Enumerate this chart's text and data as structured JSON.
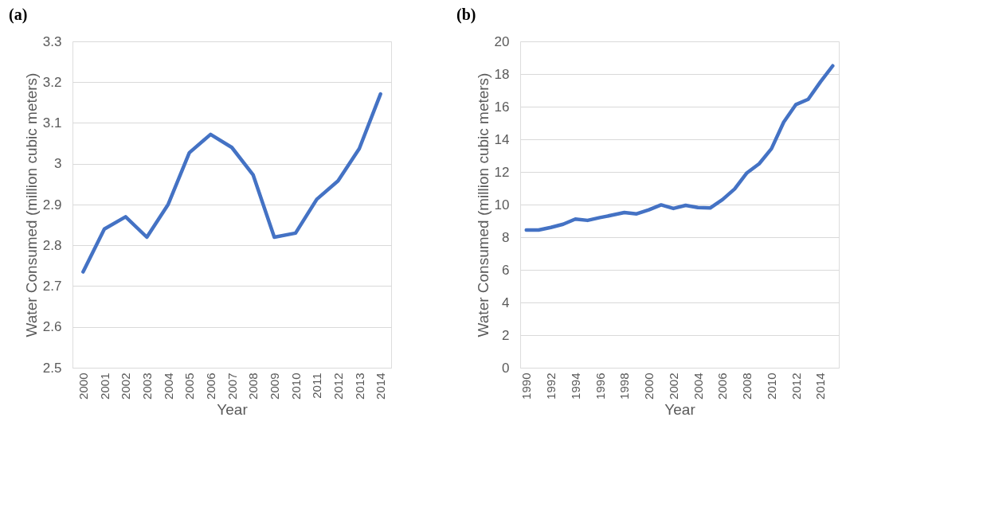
{
  "chart_data": [
    {
      "type": "line",
      "title": "(a)",
      "xlabel": "Year",
      "ylabel": "Water Consumed (million cubic meters)",
      "categories": [
        "2000",
        "2001",
        "2002",
        "2003",
        "2004",
        "2005",
        "2006",
        "2007",
        "2008",
        "2009",
        "2010",
        "2011",
        "2012",
        "2013",
        "2014"
      ],
      "series": [
        {
          "color": "#4472c4",
          "values": [
            2.735,
            2.84,
            2.87,
            2.82,
            2.9,
            3.027,
            3.072,
            3.04,
            2.973,
            2.82,
            2.83,
            2.913,
            2.958,
            3.037,
            3.171
          ]
        }
      ],
      "ylim": [
        2.5,
        3.3
      ],
      "yticks": [
        2.5,
        2.6,
        2.7,
        2.8,
        2.9,
        3,
        3.1,
        3.2,
        3.3
      ],
      "grid": "y",
      "marker": "none",
      "line_style": "solid"
    },
    {
      "type": "line",
      "title": "(b)",
      "xlabel": "Year",
      "ylabel": "Water Consumed (million cubic meters)",
      "categories": [
        "1990",
        null,
        "1992",
        null,
        "1994",
        null,
        "1996",
        null,
        "1998",
        null,
        "2000",
        null,
        "2002",
        null,
        "2004",
        null,
        "2006",
        null,
        "2008",
        null,
        "2010",
        null,
        "2012",
        null,
        "2014",
        null
      ],
      "series": [
        {
          "color": "#4472c4",
          "values": [
            8.44,
            8.44,
            8.6,
            8.79,
            9.11,
            9.03,
            9.2,
            9.35,
            9.51,
            9.43,
            9.68,
            9.98,
            9.76,
            9.95,
            9.82,
            9.79,
            10.3,
            10.96,
            11.94,
            12.5,
            13.42,
            15.05,
            16.13,
            16.45,
            17.52,
            18.5
          ]
        }
      ],
      "ylim": [
        0,
        20
      ],
      "yticks": [
        0,
        2,
        4,
        6,
        8,
        10,
        12,
        14,
        16,
        18,
        20
      ],
      "grid": "y",
      "marker": "none",
      "line_style": "solid"
    }
  ]
}
